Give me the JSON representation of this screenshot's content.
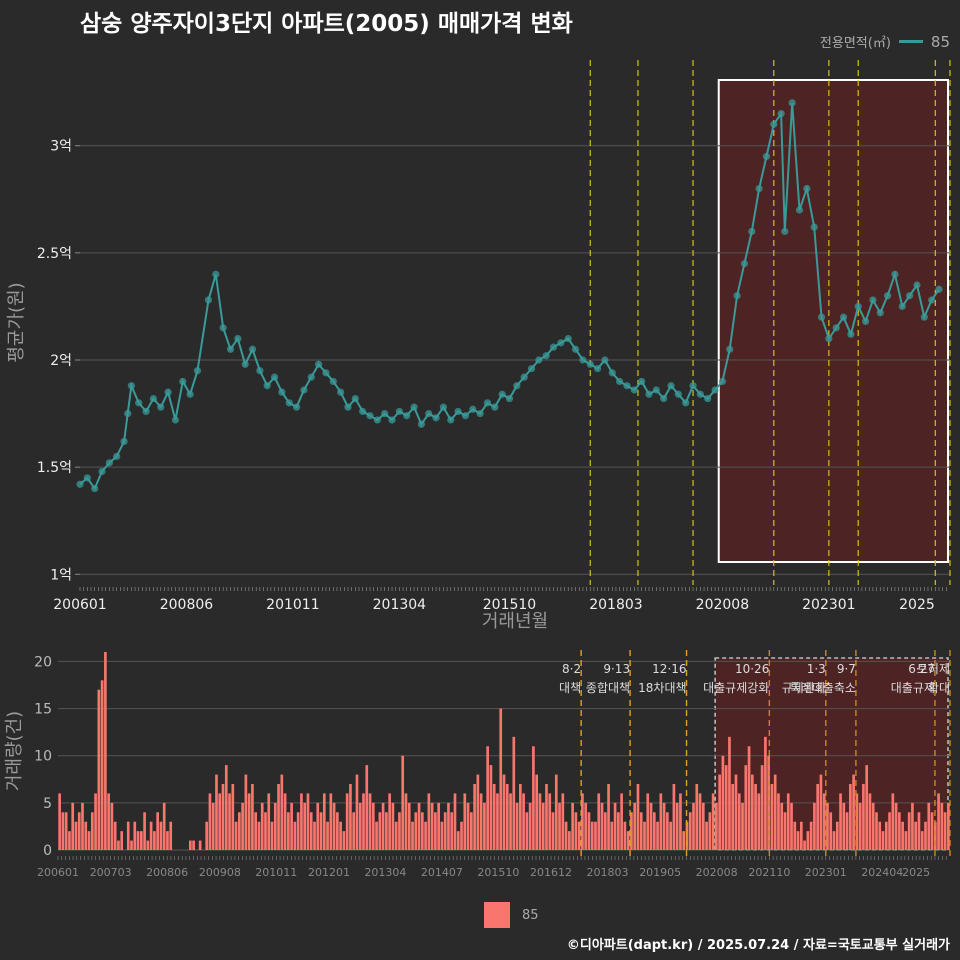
{
  "title": "삼숭 양주자이3단지 아파트(2005) 매매가격 변화",
  "footer": "©디아파트(dapt.kr) / 2025.07.24 / 자료=국토교통부 실거래가",
  "legend_top": {
    "title": "전용면적(㎡)",
    "series": "85"
  },
  "legend_bottom": {
    "series": "85"
  },
  "colors": {
    "background": "#2a2a2b",
    "price_line": "#3a9a98",
    "volume_bar": "#f8766d",
    "policy_line": "#d4c21a",
    "highlight_fill": "#5a2222"
  },
  "chart_data": [
    {
      "type": "scatter",
      "title": "",
      "xlabel": "거래년월",
      "ylabel": "평균가(원)",
      "x_ticks": [
        "200601",
        "200806",
        "201011",
        "201304",
        "201510",
        "201803",
        "202008",
        "202301",
        "2025"
      ],
      "y_ticks": [
        "1억",
        "1.5억",
        "2억",
        "2.5억",
        "3억"
      ],
      "ylim": [
        0.95,
        3.4
      ],
      "grid": true,
      "legend": "top-right",
      "policy_lines": [
        "2017.08",
        "2018.09",
        "2019.12",
        "2021.10",
        "2023.01",
        "2023.09",
        "2025.06",
        "2025.10"
      ],
      "highlight_range": [
        "2020.07",
        "2025.10"
      ],
      "series": [
        {
          "name": "85",
          "points": [
            [
              "2006.01",
              1.42
            ],
            [
              "2006.03",
              1.45
            ],
            [
              "2006.05",
              1.4
            ],
            [
              "2006.07",
              1.48
            ],
            [
              "2006.09",
              1.52
            ],
            [
              "2006.11",
              1.55
            ],
            [
              "2007.01",
              1.62
            ],
            [
              "2007.02",
              1.75
            ],
            [
              "2007.03",
              1.88
            ],
            [
              "2007.05",
              1.8
            ],
            [
              "2007.07",
              1.76
            ],
            [
              "2007.09",
              1.82
            ],
            [
              "2007.11",
              1.78
            ],
            [
              "2008.01",
              1.85
            ],
            [
              "2008.03",
              1.72
            ],
            [
              "2008.05",
              1.9
            ],
            [
              "2008.07",
              1.84
            ],
            [
              "2008.09",
              1.95
            ],
            [
              "2008.12",
              2.28
            ],
            [
              "2009.02",
              2.4
            ],
            [
              "2009.04",
              2.15
            ],
            [
              "2009.06",
              2.05
            ],
            [
              "2009.08",
              2.1
            ],
            [
              "2009.10",
              1.98
            ],
            [
              "2009.12",
              2.05
            ],
            [
              "2010.02",
              1.95
            ],
            [
              "2010.04",
              1.88
            ],
            [
              "2010.06",
              1.92
            ],
            [
              "2010.08",
              1.85
            ],
            [
              "2010.10",
              1.8
            ],
            [
              "2010.12",
              1.78
            ],
            [
              "2011.02",
              1.86
            ],
            [
              "2011.04",
              1.92
            ],
            [
              "2011.06",
              1.98
            ],
            [
              "2011.08",
              1.94
            ],
            [
              "2011.10",
              1.9
            ],
            [
              "2011.12",
              1.85
            ],
            [
              "2012.02",
              1.78
            ],
            [
              "2012.04",
              1.82
            ],
            [
              "2012.06",
              1.76
            ],
            [
              "2012.08",
              1.74
            ],
            [
              "2012.10",
              1.72
            ],
            [
              "2012.12",
              1.75
            ],
            [
              "2013.02",
              1.72
            ],
            [
              "2013.04",
              1.76
            ],
            [
              "2013.06",
              1.74
            ],
            [
              "2013.08",
              1.78
            ],
            [
              "2013.10",
              1.7
            ],
            [
              "2013.12",
              1.75
            ],
            [
              "2014.02",
              1.73
            ],
            [
              "2014.04",
              1.78
            ],
            [
              "2014.06",
              1.72
            ],
            [
              "2014.08",
              1.76
            ],
            [
              "2014.10",
              1.74
            ],
            [
              "2014.12",
              1.77
            ],
            [
              "2015.02",
              1.75
            ],
            [
              "2015.04",
              1.8
            ],
            [
              "2015.06",
              1.78
            ],
            [
              "2015.08",
              1.84
            ],
            [
              "2015.10",
              1.82
            ],
            [
              "2015.12",
              1.88
            ],
            [
              "2016.02",
              1.92
            ],
            [
              "2016.04",
              1.96
            ],
            [
              "2016.06",
              2.0
            ],
            [
              "2016.08",
              2.02
            ],
            [
              "2016.10",
              2.06
            ],
            [
              "2016.12",
              2.08
            ],
            [
              "2017.02",
              2.1
            ],
            [
              "2017.04",
              2.05
            ],
            [
              "2017.06",
              2.0
            ],
            [
              "2017.08",
              1.98
            ],
            [
              "2017.10",
              1.96
            ],
            [
              "2017.12",
              2.0
            ],
            [
              "2018.02",
              1.94
            ],
            [
              "2018.04",
              1.9
            ],
            [
              "2018.06",
              1.88
            ],
            [
              "2018.08",
              1.86
            ],
            [
              "2018.10",
              1.9
            ],
            [
              "2018.12",
              1.84
            ],
            [
              "2019.02",
              1.86
            ],
            [
              "2019.04",
              1.82
            ],
            [
              "2019.06",
              1.88
            ],
            [
              "2019.08",
              1.84
            ],
            [
              "2019.10",
              1.8
            ],
            [
              "2019.12",
              1.88
            ],
            [
              "2020.02",
              1.84
            ],
            [
              "2020.04",
              1.82
            ],
            [
              "2020.06",
              1.86
            ],
            [
              "2020.08",
              1.9
            ],
            [
              "2020.10",
              2.05
            ],
            [
              "2020.12",
              2.3
            ],
            [
              "2021.02",
              2.45
            ],
            [
              "2021.04",
              2.6
            ],
            [
              "2021.06",
              2.8
            ],
            [
              "2021.08",
              2.95
            ],
            [
              "2021.10",
              3.1
            ],
            [
              "2021.12",
              3.15
            ],
            [
              "2022.01",
              2.6
            ],
            [
              "2022.03",
              3.2
            ],
            [
              "2022.05",
              2.7
            ],
            [
              "2022.07",
              2.8
            ],
            [
              "2022.09",
              2.62
            ],
            [
              "2022.11",
              2.2
            ],
            [
              "2023.01",
              2.1
            ],
            [
              "2023.03",
              2.15
            ],
            [
              "2023.05",
              2.2
            ],
            [
              "2023.07",
              2.12
            ],
            [
              "2023.09",
              2.25
            ],
            [
              "2023.11",
              2.18
            ],
            [
              "2024.01",
              2.28
            ],
            [
              "2024.03",
              2.22
            ],
            [
              "2024.05",
              2.3
            ],
            [
              "2024.07",
              2.4
            ],
            [
              "2024.09",
              2.25
            ],
            [
              "2024.11",
              2.3
            ],
            [
              "2025.01",
              2.35
            ],
            [
              "2025.03",
              2.2
            ],
            [
              "2025.05",
              2.28
            ],
            [
              "2025.07",
              2.33
            ]
          ]
        }
      ]
    },
    {
      "type": "bar",
      "title": "",
      "xlabel": "",
      "ylabel": "거래량(건)",
      "x_ticks": [
        "200601",
        "200703",
        "200806",
        "200908",
        "201011",
        "201201",
        "201304",
        "201407",
        "201510",
        "201612",
        "201803",
        "201905",
        "202008",
        "202110",
        "202301",
        "202404",
        "2025"
      ],
      "y_ticks": [
        "0",
        "5",
        "10",
        "15",
        "20"
      ],
      "ylim": [
        0,
        21
      ],
      "annotations": [
        {
          "date": "2017.08",
          "text": "8·2 대책"
        },
        {
          "date": "2018.09",
          "text": "9·13 종합대책"
        },
        {
          "date": "2019.12",
          "text": "12·16 18차대책"
        },
        {
          "date": "2021.10",
          "text": "10·26 대출규제강화"
        },
        {
          "date": "2023.01",
          "text": "1·3 규제완화"
        },
        {
          "date": "2023.09",
          "text": "9·7 특례대출축소"
        },
        {
          "date": "2025.06",
          "text": "6·27 대출규제"
        },
        {
          "date": "2025.10",
          "text": "토허제 확대"
        }
      ],
      "series": [
        {
          "name": "85",
          "values": [
            6,
            4,
            4,
            2,
            5,
            3,
            4,
            5,
            3,
            2,
            4,
            6,
            17,
            18,
            21,
            6,
            5,
            3,
            1,
            2,
            0,
            3,
            1,
            3,
            2,
            2,
            4,
            1,
            3,
            2,
            4,
            3,
            5,
            2,
            3,
            0,
            0,
            0,
            0,
            0,
            1,
            1,
            0,
            1,
            0,
            3,
            6,
            5,
            8,
            6,
            7,
            9,
            6,
            7,
            3,
            4,
            5,
            8,
            6,
            7,
            4,
            3,
            5,
            4,
            6,
            3,
            5,
            7,
            8,
            6,
            4,
            5,
            3,
            4,
            6,
            5,
            6,
            4,
            3,
            5,
            4,
            6,
            3,
            6,
            5,
            4,
            3,
            2,
            6,
            7,
            4,
            8,
            5,
            6,
            9,
            6,
            5,
            3,
            4,
            5,
            4,
            6,
            5,
            3,
            4,
            10,
            6,
            5,
            3,
            4,
            5,
            4,
            3,
            6,
            5,
            4,
            5,
            3,
            4,
            5,
            4,
            6,
            2,
            3,
            6,
            5,
            4,
            7,
            8,
            6,
            5,
            11,
            9,
            7,
            6,
            15,
            8,
            7,
            6,
            12,
            5,
            7,
            6,
            4,
            5,
            11,
            8,
            6,
            5,
            7,
            6,
            4,
            8,
            5,
            6,
            3,
            2,
            5,
            4,
            3,
            6,
            5,
            4,
            3,
            3,
            6,
            5,
            4,
            7,
            3,
            5,
            4,
            6,
            3,
            2,
            4,
            5,
            7,
            4,
            3,
            6,
            5,
            4,
            3,
            6,
            5,
            4,
            3,
            7,
            5,
            6,
            2,
            3,
            4,
            5,
            7,
            6,
            5,
            3,
            4,
            6,
            5,
            8,
            10,
            9,
            12,
            7,
            8,
            6,
            5,
            9,
            11,
            8,
            7,
            6,
            9,
            12,
            10,
            7,
            8,
            6,
            5,
            4,
            6,
            5,
            3,
            2,
            3,
            1,
            2,
            3,
            5,
            7,
            8,
            6,
            5,
            4,
            2,
            3,
            6,
            5,
            4,
            7,
            8,
            6,
            5,
            7,
            9,
            6,
            5,
            4,
            3,
            2,
            3,
            4,
            6,
            5,
            4,
            3,
            2,
            4,
            5,
            3,
            4,
            2,
            3,
            5,
            4,
            3,
            6,
            5,
            4,
            5
          ]
        }
      ]
    }
  ]
}
